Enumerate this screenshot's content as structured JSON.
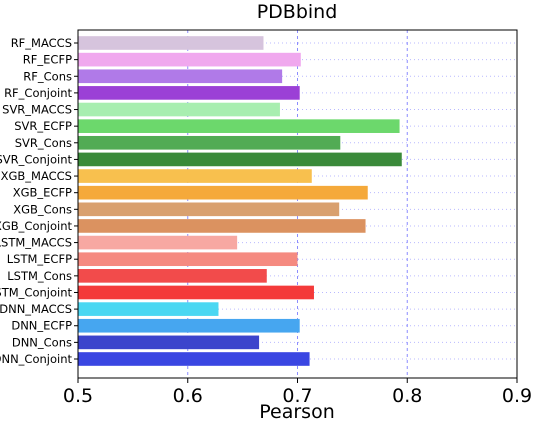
{
  "chart_data": {
    "type": "bar",
    "orientation": "horizontal",
    "title": "PDBbind",
    "xlabel": "Pearson",
    "ylabel": "",
    "xlim": [
      0.5,
      0.9
    ],
    "xticks": [
      "0.5",
      "0.6",
      "0.7",
      "0.8",
      "0.9"
    ],
    "grid": true,
    "categories": [
      "RF_MACCS",
      "RF_ECFP",
      "RF_Cons",
      "RF_Conjoint",
      "SVR_MACCS",
      "SVR_ECFP",
      "SVR_Cons",
      "SVR_Conjoint",
      "XGB_MACCS",
      "XGB_ECFP",
      "XGB_Cons",
      "XGB_Conjoint",
      "LSTM_MACCS",
      "LSTM_ECFP",
      "LSTM_Cons",
      "LSTM_Conjoint",
      "DNN_MACCS",
      "DNN_ECFP",
      "DNN_Cons",
      "DNN_Conjoint"
    ],
    "values": [
      0.669,
      0.703,
      0.686,
      0.702,
      0.684,
      0.793,
      0.739,
      0.795,
      0.713,
      0.764,
      0.738,
      0.762,
      0.645,
      0.7,
      0.672,
      0.715,
      0.628,
      0.702,
      0.665,
      0.711
    ],
    "colors": [
      "#d6c4dd",
      "#f0a8ee",
      "#b07ae8",
      "#9b40d6",
      "#a8eeb0",
      "#6cd86c",
      "#52ab54",
      "#3a8a3a",
      "#f8c04e",
      "#f5a93a",
      "#d9a06e",
      "#db9260",
      "#f7a8a2",
      "#f58a80",
      "#f24b4b",
      "#f43a3a",
      "#4ad7f2",
      "#46a6f0",
      "#3c44cc",
      "#3a46e2"
    ]
  }
}
